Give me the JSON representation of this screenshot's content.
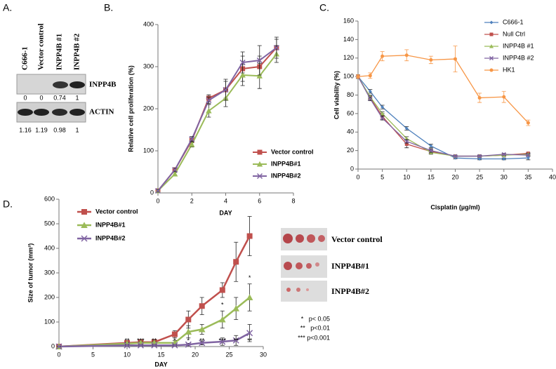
{
  "panel_labels": [
    "A.",
    "B.",
    "C.",
    "D."
  ],
  "blot": {
    "column_labels": [
      "C666-1",
      "Vector control",
      "INPP4B #1",
      "INPP4B #2"
    ],
    "rows": [
      {
        "label": "INPP4B",
        "values": [
          0,
          0,
          0.74,
          1
        ]
      },
      {
        "label": "ACTIN",
        "values": [
          1.16,
          1.19,
          0.98,
          1
        ]
      }
    ]
  },
  "chart_data": [
    {
      "type": "line",
      "x_label": "DAY",
      "y_label": "Relative cell proliferation (%)",
      "x": [
        0,
        1,
        2,
        3,
        4,
        5,
        6,
        7
      ],
      "xlim": [
        0,
        8
      ],
      "xticks": [
        0,
        2,
        4,
        6,
        8
      ],
      "ylim": [
        0,
        400
      ],
      "yticks": [
        0,
        100,
        200,
        300,
        400
      ],
      "series": [
        {
          "name": "Vector control",
          "color": "#c0504d",
          "marker": "square",
          "values": [
            5,
            55,
            125,
            225,
            245,
            295,
            300,
            345
          ],
          "errors": [
            3,
            4,
            6,
            8,
            20,
            30,
            25,
            20
          ]
        },
        {
          "name": "INPP4B#1",
          "color": "#9bbb59",
          "marker": "triangle",
          "values": [
            5,
            45,
            115,
            195,
            225,
            280,
            278,
            330
          ],
          "errors": [
            3,
            4,
            6,
            15,
            20,
            25,
            30,
            20
          ]
        },
        {
          "name": "INPP4B#2",
          "color": "#8064a2",
          "marker": "x",
          "values": [
            5,
            55,
            128,
            220,
            245,
            310,
            315,
            345
          ],
          "errors": [
            3,
            4,
            6,
            8,
            25,
            25,
            35,
            25
          ]
        }
      ]
    },
    {
      "type": "line",
      "x_label": "Cisplatin (µg/ml)",
      "y_label": "Cell viability (%)",
      "x": [
        0,
        2.5,
        5,
        10,
        15,
        20,
        25,
        30,
        35
      ],
      "xlim": [
        0,
        40
      ],
      "xticks": [
        0,
        5,
        10,
        15,
        20,
        25,
        30,
        35,
        40
      ],
      "ylim": [
        0,
        160
      ],
      "yticks": [
        0,
        20,
        40,
        60,
        80,
        100,
        120,
        140,
        160
      ],
      "series": [
        {
          "name": "C666-1",
          "color": "#4f81bd",
          "marker": "diamond",
          "values": [
            100,
            84,
            67,
            44,
            25,
            12,
            11,
            11,
            12
          ],
          "errors": [
            2,
            2,
            2,
            2,
            2,
            1,
            1,
            1,
            2
          ]
        },
        {
          "name": "Null Ctrl",
          "color": "#c0504d",
          "marker": "square",
          "values": [
            100,
            77,
            57,
            27,
            19,
            14,
            14,
            15,
            17
          ],
          "errors": [
            2,
            2,
            3,
            4,
            2,
            1,
            1,
            1,
            1
          ]
        },
        {
          "name": "INPP4B #1",
          "color": "#9bbb59",
          "marker": "triangle",
          "values": [
            100,
            78,
            60,
            33,
            18,
            14,
            14,
            15,
            16
          ],
          "errors": [
            2,
            2,
            2,
            2,
            2,
            1,
            1,
            1,
            1
          ]
        },
        {
          "name": "INPP4B #2",
          "color": "#8064a2",
          "marker": "x",
          "values": [
            100,
            76,
            55,
            30,
            20,
            14,
            14,
            16,
            15
          ],
          "errors": [
            2,
            2,
            2,
            2,
            2,
            1,
            1,
            1,
            1
          ]
        },
        {
          "name": "HK1",
          "color": "#f79646",
          "marker": "circle",
          "values": [
            100,
            101,
            122,
            123,
            118,
            119,
            77,
            78,
            50
          ],
          "errors": [
            2,
            3,
            5,
            6,
            4,
            14,
            5,
            6,
            3
          ]
        }
      ]
    },
    {
      "type": "line",
      "x_label": "DAY",
      "y_label": "Size of tumor (mm³)",
      "x": [
        0,
        10,
        12,
        14,
        17,
        19,
        21,
        24,
        26,
        28
      ],
      "xlim": [
        0,
        30
      ],
      "xticks": [
        0,
        5,
        10,
        15,
        20,
        25,
        30
      ],
      "ylim": [
        0,
        600
      ],
      "yticks": [
        0,
        100,
        200,
        300,
        400,
        500,
        600
      ],
      "series": [
        {
          "name": "Vector control",
          "color": "#c0504d",
          "marker": "square",
          "values": [
            0,
            15,
            18,
            18,
            50,
            110,
            165,
            230,
            345,
            450
          ],
          "errors": [
            0,
            5,
            5,
            5,
            15,
            35,
            35,
            30,
            80,
            80
          ]
        },
        {
          "name": "INPP4B#1",
          "color": "#9bbb59",
          "marker": "triangle",
          "values": [
            0,
            12,
            15,
            15,
            15,
            60,
            70,
            110,
            155,
            200
          ],
          "errors": [
            0,
            5,
            5,
            5,
            10,
            25,
            20,
            35,
            45,
            55
          ],
          "significance": [
            null,
            null,
            null,
            null,
            null,
            null,
            null,
            "*",
            null,
            "*"
          ],
          "significance_side": "above"
        },
        {
          "name": "INPP4B#2",
          "color": "#8064a2",
          "marker": "x",
          "values": [
            0,
            5,
            5,
            5,
            5,
            8,
            15,
            20,
            25,
            55
          ],
          "errors": [
            0,
            3,
            3,
            3,
            3,
            5,
            8,
            15,
            20,
            35
          ],
          "significance": [
            null,
            "**",
            "***",
            "**",
            "*",
            "*",
            "**",
            "***",
            "**",
            "**"
          ],
          "significance_side": "below"
        }
      ]
    }
  ],
  "tumor_photos": {
    "labels": [
      "Vector control",
      "INPP4B#1",
      "INPP4B#2"
    ]
  },
  "significance_legend": [
    "*   p< 0.05",
    "**   p<0.01",
    "*** p<0.001"
  ]
}
